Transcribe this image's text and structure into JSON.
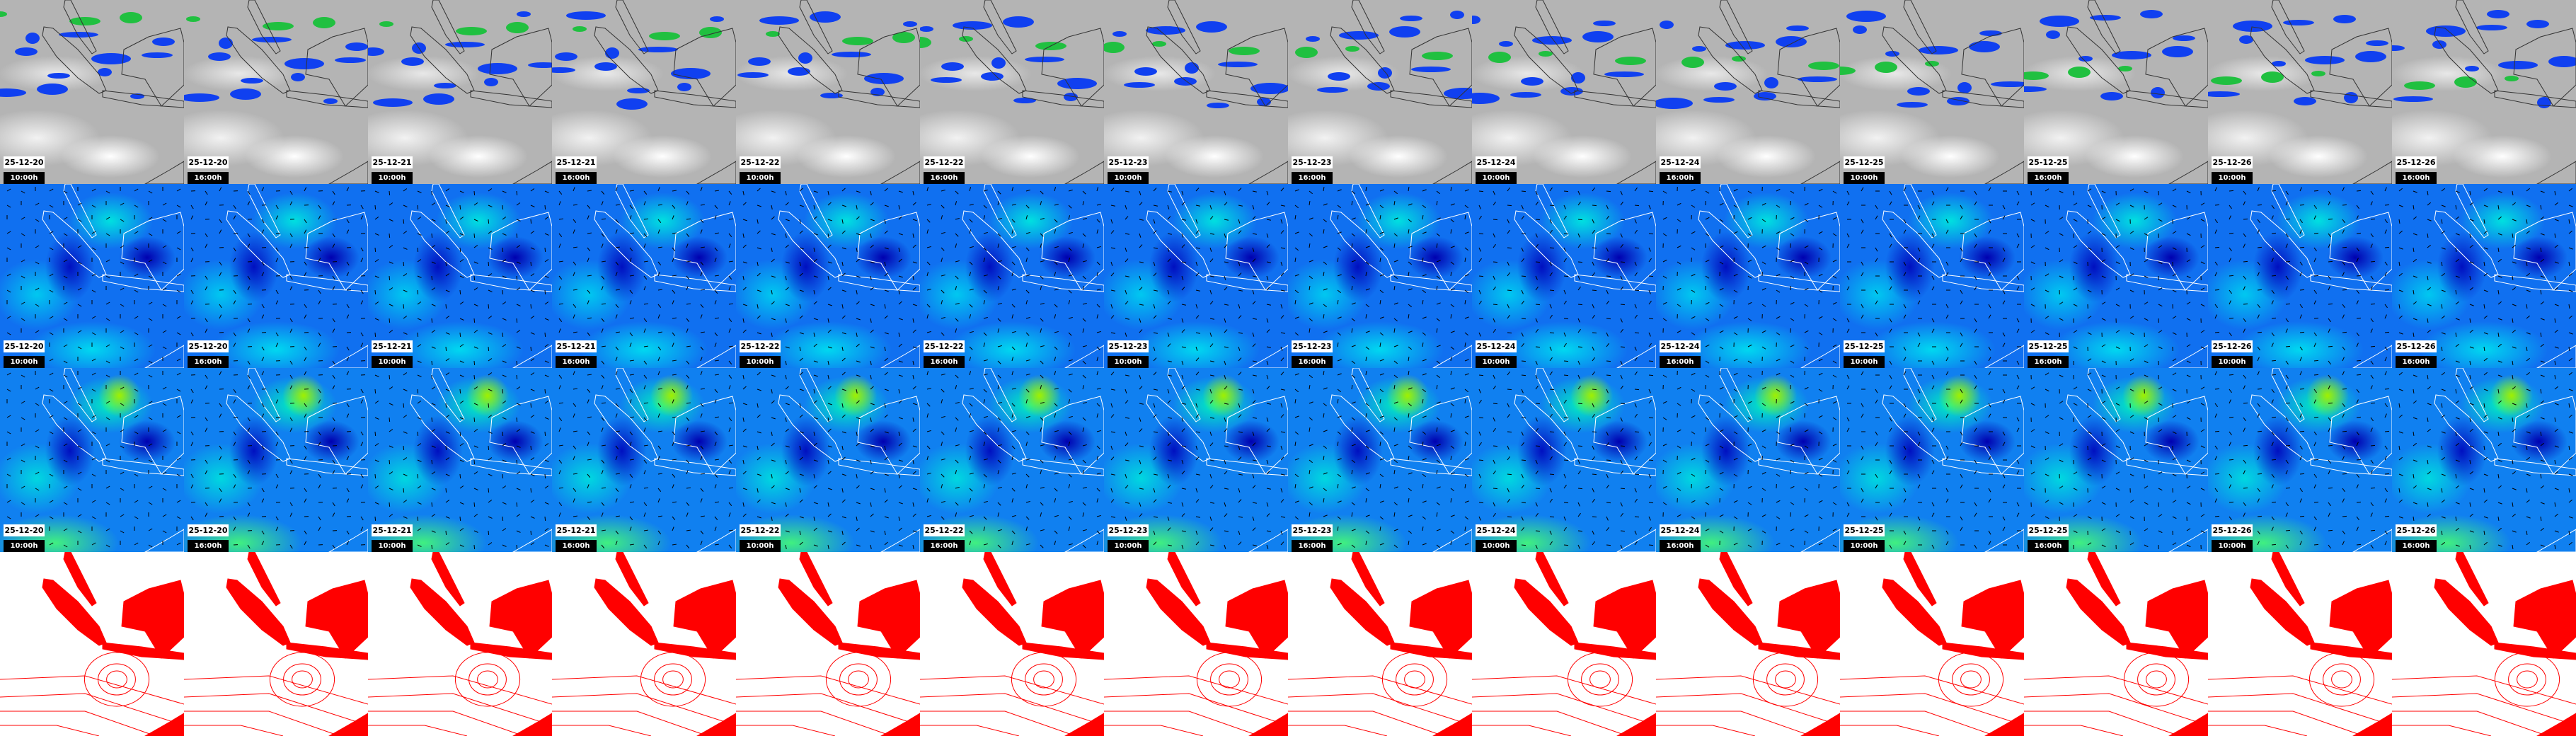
{
  "rows": [
    {
      "name": "satellite-cloud-row",
      "style": "sat",
      "labeled": true
    },
    {
      "name": "wind-map-row-1",
      "style": "wind",
      "labeled": true
    },
    {
      "name": "wind-map-row-2",
      "style": "wind2",
      "labeled": true
    },
    {
      "name": "pressure-contour-row",
      "style": "press",
      "labeled": false
    }
  ],
  "frames": [
    {
      "date": "25-12-20",
      "time": "10:00h"
    },
    {
      "date": "25-12-20",
      "time": "16:00h"
    },
    {
      "date": "25-12-21",
      "time": "10:00h"
    },
    {
      "date": "25-12-21",
      "time": "16:00h"
    },
    {
      "date": "25-12-22",
      "time": "10:00h"
    },
    {
      "date": "25-12-22",
      "time": "16:00h"
    },
    {
      "date": "25-12-23",
      "time": "10:00h"
    },
    {
      "date": "25-12-23",
      "time": "16:00h"
    },
    {
      "date": "25-12-24",
      "time": "10:00h"
    },
    {
      "date": "25-12-24",
      "time": "16:00h"
    },
    {
      "date": "25-12-25",
      "time": "10:00h"
    },
    {
      "date": "25-12-25",
      "time": "16:00h"
    },
    {
      "date": "25-12-26",
      "time": "10:00h"
    },
    {
      "date": "25-12-26",
      "time": "16:00h"
    }
  ],
  "colors": {
    "coast_sat": "#333333",
    "coast_wind": "#ffffff",
    "land_pressure": "#ff0000",
    "contour": "#ff0000"
  }
}
